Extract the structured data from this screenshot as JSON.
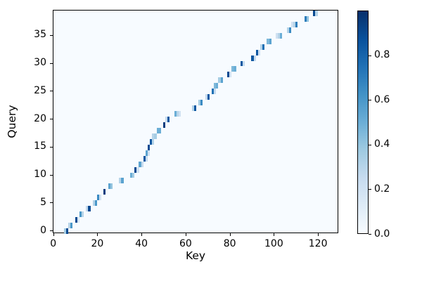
{
  "chart_data": {
    "type": "heatmap",
    "title": "",
    "xlabel": "Key",
    "ylabel": "Query",
    "x_ticks": [
      0,
      20,
      40,
      60,
      80,
      100,
      120
    ],
    "y_ticks": [
      0,
      5,
      10,
      15,
      20,
      25,
      30,
      35
    ],
    "n_queries": 40,
    "n_keys": 130,
    "xlim": [
      -0.5,
      129.5
    ],
    "ylim": [
      -0.5,
      39.5
    ],
    "value_range": [
      0.0,
      1.0
    ],
    "grid": false,
    "colormap": "Blues",
    "colormap_stops": [
      [
        247,
        251,
        255
      ],
      [
        222,
        235,
        247
      ],
      [
        198,
        219,
        239
      ],
      [
        158,
        202,
        225
      ],
      [
        107,
        174,
        214
      ],
      [
        66,
        146,
        198
      ],
      [
        33,
        113,
        181
      ],
      [
        8,
        81,
        156
      ],
      [
        8,
        48,
        107
      ]
    ],
    "plot_background": "#f7fbff",
    "spine_color": "#000000",
    "colorbar": {
      "position": "right",
      "tick_labels": [
        "0.0",
        "0.2",
        "0.4",
        "0.6",
        "0.8"
      ],
      "tick_values": [
        0.0,
        0.2,
        0.4,
        0.6,
        0.8
      ]
    },
    "cells": [
      {
        "q": 0,
        "keys": [
          [
            5,
            0.35
          ],
          [
            6,
            0.9
          ]
        ]
      },
      {
        "q": 1,
        "keys": [
          [
            7,
            0.3
          ],
          [
            8,
            0.6
          ]
        ]
      },
      {
        "q": 2,
        "keys": [
          [
            10,
            0.9
          ],
          [
            11,
            0.15
          ]
        ]
      },
      {
        "q": 3,
        "keys": [
          [
            12,
            0.6
          ],
          [
            13,
            0.3
          ]
        ]
      },
      {
        "q": 4,
        "keys": [
          [
            15,
            0.25
          ],
          [
            16,
            0.9
          ]
        ]
      },
      {
        "q": 5,
        "keys": [
          [
            18,
            0.3
          ],
          [
            19,
            0.6
          ]
        ]
      },
      {
        "q": 6,
        "keys": [
          [
            20,
            0.65
          ],
          [
            21,
            0.2
          ]
        ]
      },
      {
        "q": 7,
        "keys": [
          [
            23,
            0.95
          ]
        ]
      },
      {
        "q": 8,
        "keys": [
          [
            25,
            0.55
          ],
          [
            26,
            0.4
          ]
        ]
      },
      {
        "q": 9,
        "keys": [
          [
            30,
            0.3
          ],
          [
            31,
            0.55
          ]
        ]
      },
      {
        "q": 10,
        "keys": [
          [
            35,
            0.5
          ],
          [
            36,
            0.35
          ]
        ]
      },
      {
        "q": 11,
        "keys": [
          [
            37,
            0.9
          ],
          [
            38,
            0.2
          ]
        ]
      },
      {
        "q": 12,
        "keys": [
          [
            39,
            0.55
          ],
          [
            40,
            0.25
          ]
        ]
      },
      {
        "q": 13,
        "keys": [
          [
            41,
            0.85
          ],
          [
            42,
            0.25
          ]
        ]
      },
      {
        "q": 14,
        "keys": [
          [
            42,
            0.55
          ],
          [
            43,
            0.2
          ]
        ]
      },
      {
        "q": 15,
        "keys": [
          [
            43,
            0.9
          ]
        ]
      },
      {
        "q": 16,
        "keys": [
          [
            44,
            0.85
          ],
          [
            45,
            0.3
          ]
        ]
      },
      {
        "q": 17,
        "keys": [
          [
            45,
            0.3
          ],
          [
            46,
            0.35
          ]
        ]
      },
      {
        "q": 18,
        "keys": [
          [
            47,
            0.5
          ],
          [
            48,
            0.5
          ]
        ]
      },
      {
        "q": 19,
        "keys": [
          [
            50,
            0.95
          ]
        ]
      },
      {
        "q": 20,
        "keys": [
          [
            51,
            0.25
          ],
          [
            52,
            0.85
          ]
        ]
      },
      {
        "q": 21,
        "keys": [
          [
            55,
            0.5
          ],
          [
            56,
            0.3
          ],
          [
            57,
            0.2
          ]
        ]
      },
      {
        "q": 22,
        "keys": [
          [
            63,
            0.3
          ],
          [
            64,
            0.85
          ]
        ]
      },
      {
        "q": 23,
        "keys": [
          [
            66,
            0.35
          ],
          [
            67,
            0.65
          ]
        ]
      },
      {
        "q": 24,
        "keys": [
          [
            69,
            0.25
          ],
          [
            70,
            0.85
          ]
        ]
      },
      {
        "q": 25,
        "keys": [
          [
            72,
            0.75
          ],
          [
            73,
            0.25
          ]
        ]
      },
      {
        "q": 26,
        "keys": [
          [
            73,
            0.45
          ],
          [
            74,
            0.5
          ]
        ]
      },
      {
        "q": 27,
        "keys": [
          [
            75,
            0.35
          ],
          [
            76,
            0.55
          ]
        ]
      },
      {
        "q": 28,
        "keys": [
          [
            79,
            0.9
          ],
          [
            80,
            0.2
          ]
        ]
      },
      {
        "q": 29,
        "keys": [
          [
            81,
            0.45
          ],
          [
            82,
            0.5
          ]
        ]
      },
      {
        "q": 30,
        "keys": [
          [
            85,
            0.85
          ],
          [
            86,
            0.25
          ]
        ]
      },
      {
        "q": 31,
        "keys": [
          [
            90,
            0.85
          ],
          [
            91,
            0.25
          ]
        ]
      },
      {
        "q": 32,
        "keys": [
          [
            92,
            0.85
          ],
          [
            93,
            0.2
          ]
        ]
      },
      {
        "q": 33,
        "keys": [
          [
            94,
            0.3
          ],
          [
            95,
            0.75
          ]
        ]
      },
      {
        "q": 34,
        "keys": [
          [
            97,
            0.45
          ],
          [
            98,
            0.55
          ]
        ]
      },
      {
        "q": 35,
        "keys": [
          [
            101,
            0.2
          ],
          [
            102,
            0.3
          ],
          [
            103,
            0.5
          ]
        ]
      },
      {
        "q": 36,
        "keys": [
          [
            106,
            0.3
          ],
          [
            107,
            0.65
          ]
        ]
      },
      {
        "q": 37,
        "keys": [
          [
            108,
            0.2
          ],
          [
            109,
            0.3
          ],
          [
            110,
            0.7
          ]
        ]
      },
      {
        "q": 38,
        "keys": [
          [
            114,
            0.7
          ],
          [
            115,
            0.4
          ]
        ]
      },
      {
        "q": 39,
        "keys": [
          [
            118,
            0.9
          ],
          [
            119,
            0.3
          ]
        ]
      }
    ]
  }
}
